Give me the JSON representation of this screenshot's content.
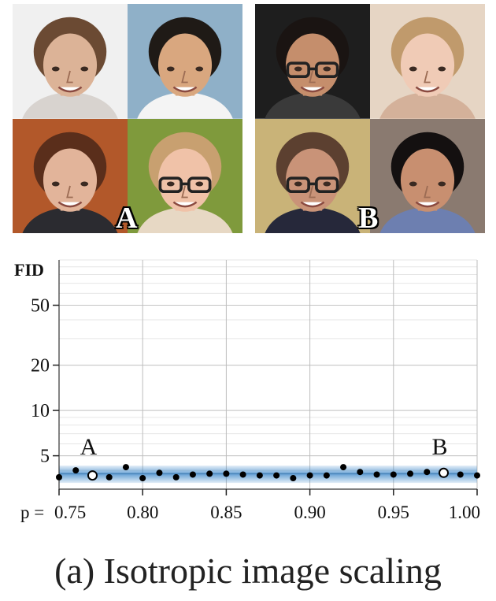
{
  "image_grids": [
    {
      "label": "A",
      "faces": [
        {
          "bg": "#f0f0f0",
          "skin": "#dcb397",
          "hair": "#6b4a33",
          "shirt": "#d8d3cf"
        },
        {
          "bg": "#8fb0c8",
          "skin": "#d9a77f",
          "hair": "#1f1a16",
          "shirt": "#f4f4f4"
        },
        {
          "bg": "#b2582a",
          "skin": "#e2b49a",
          "hair": "#5a2e1b",
          "shirt": "#2b2b30"
        },
        {
          "bg": "#7f9a3c",
          "skin": "#f0c2a8",
          "hair": "#c8a070",
          "shirt": "#e7d8c4",
          "glasses": true
        }
      ]
    },
    {
      "label": "B",
      "faces": [
        {
          "bg": "#1e1e1e",
          "skin": "#c58e6c",
          "hair": "#1a1412",
          "shirt": "#3a3a3a",
          "glasses": true
        },
        {
          "bg": "#e6d5c4",
          "skin": "#f0cbb6",
          "hair": "#c09a6c",
          "shirt": "#d4b19a"
        },
        {
          "bg": "#c9b378",
          "skin": "#c99378",
          "hair": "#5c4030",
          "shirt": "#26283a",
          "glasses": true
        },
        {
          "bg": "#8a7a70",
          "skin": "#c88f70",
          "hair": "#141010",
          "shirt": "#6d7fb0"
        }
      ]
    }
  ],
  "chart_data": {
    "type": "scatter",
    "ylabel": "FID",
    "xlabel_prefix": "p = ",
    "y_scale": "log",
    "ylim": [
      3,
      100
    ],
    "xlim": [
      0.75,
      1.0
    ],
    "yticks": [
      {
        "value": 5,
        "label": "5"
      },
      {
        "value": 10,
        "label": "10"
      },
      {
        "value": 20,
        "label": "20"
      },
      {
        "value": 50,
        "label": "50"
      }
    ],
    "xticks": [
      {
        "value": 0.75,
        "label": "0.75"
      },
      {
        "value": 0.8,
        "label": "0.80"
      },
      {
        "value": 0.85,
        "label": "0.85"
      },
      {
        "value": 0.9,
        "label": "0.90"
      },
      {
        "value": 0.95,
        "label": "0.95"
      },
      {
        "value": 1.0,
        "label": "1.00"
      }
    ],
    "grid": true,
    "band": {
      "low": 3.3,
      "high": 4.3,
      "center": 3.8,
      "color": "#3a86c8"
    },
    "points": [
      {
        "x": 0.75,
        "y": 3.6
      },
      {
        "x": 0.76,
        "y": 4.0
      },
      {
        "x": 0.77,
        "y": 3.7,
        "highlight": "A"
      },
      {
        "x": 0.78,
        "y": 3.6
      },
      {
        "x": 0.79,
        "y": 4.2
      },
      {
        "x": 0.8,
        "y": 3.55
      },
      {
        "x": 0.81,
        "y": 3.85
      },
      {
        "x": 0.82,
        "y": 3.6
      },
      {
        "x": 0.83,
        "y": 3.75
      },
      {
        "x": 0.84,
        "y": 3.8
      },
      {
        "x": 0.85,
        "y": 3.8
      },
      {
        "x": 0.86,
        "y": 3.75
      },
      {
        "x": 0.87,
        "y": 3.7
      },
      {
        "x": 0.88,
        "y": 3.7
      },
      {
        "x": 0.89,
        "y": 3.55
      },
      {
        "x": 0.9,
        "y": 3.7
      },
      {
        "x": 0.91,
        "y": 3.7
      },
      {
        "x": 0.92,
        "y": 4.2
      },
      {
        "x": 0.93,
        "y": 3.9
      },
      {
        "x": 0.94,
        "y": 3.75
      },
      {
        "x": 0.95,
        "y": 3.75
      },
      {
        "x": 0.96,
        "y": 3.8
      },
      {
        "x": 0.97,
        "y": 3.9
      },
      {
        "x": 0.98,
        "y": 3.85,
        "highlight": "B"
      },
      {
        "x": 0.99,
        "y": 3.75
      },
      {
        "x": 1.0,
        "y": 3.7
      }
    ],
    "annotations": [
      {
        "x": 0.77,
        "text": "A"
      },
      {
        "x": 0.98,
        "text": "B"
      }
    ]
  },
  "caption": "(a) Isotropic image scaling"
}
